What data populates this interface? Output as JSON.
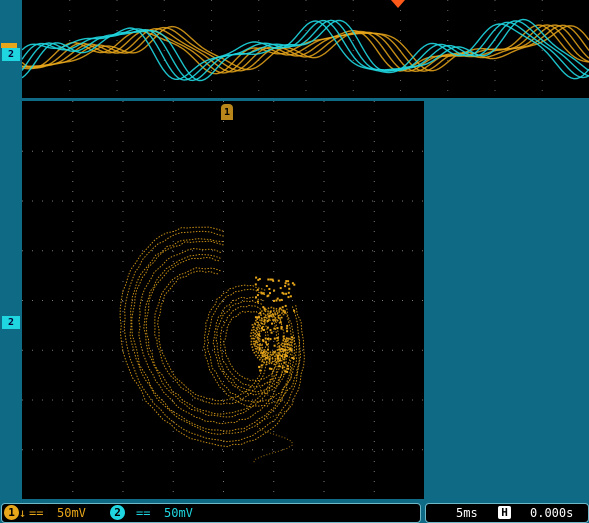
{
  "markers": {
    "ch2_top": "2",
    "ch2_mid": "2",
    "ch1_top": "1"
  },
  "status": {
    "ch1_num": "1",
    "ch1_coupling": "↓",
    "ch1_dc": "==",
    "ch1_scale": "50mV",
    "ch2_num": "2",
    "ch2_dc": "==",
    "ch2_scale": "50mV",
    "timebase": "5ms",
    "mode_icon": "H",
    "trigger_pos": "0.000s"
  },
  "colors": {
    "ch1": "#e8a61a",
    "ch2": "#1fd6e0",
    "panel": "#0f6a86",
    "trigger": "#ff5a1a"
  },
  "icons": {
    "trigger_marker": "trigger-down-arrow-icon",
    "mode": "horizontal-mode-icon"
  }
}
